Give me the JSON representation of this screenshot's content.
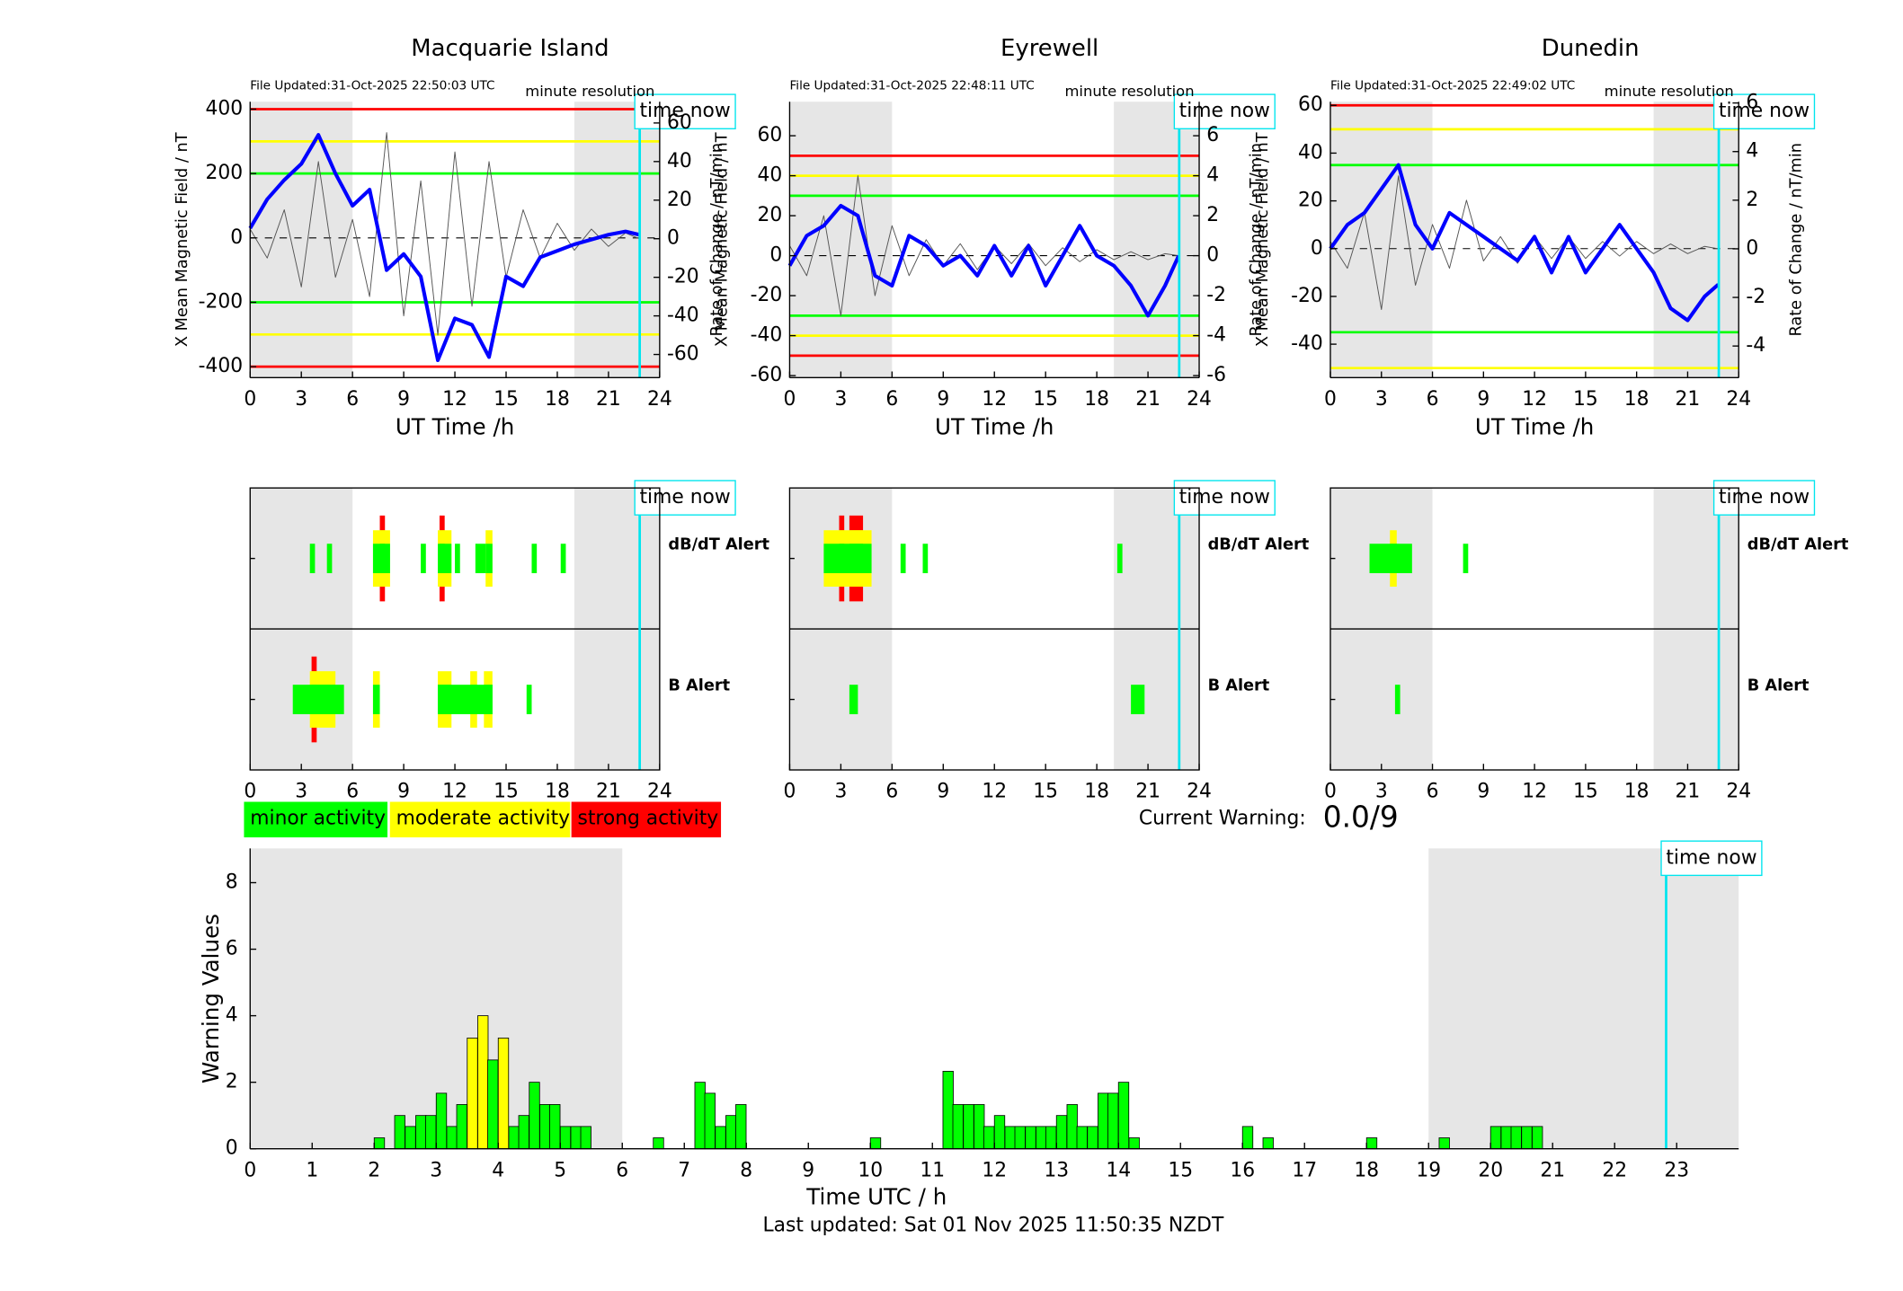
{
  "chart_data": [
    {
      "type": "line",
      "title": "Macquarie Island",
      "file_updated": "File Updated:31-Oct-2025 22:50:03 UTC",
      "resolution_label": "minute resolution",
      "time_now_label": "time now",
      "xlabel": "UT Time /h",
      "ylabel": "X Mean Magnetic Field / nT",
      "y2label": "Rate of Change / nT/min",
      "x": [
        0,
        1,
        2,
        3,
        4,
        5,
        6,
        7,
        8,
        9,
        10,
        11,
        12,
        13,
        14,
        15,
        16,
        17,
        18,
        19,
        20,
        21,
        22,
        22.8
      ],
      "xlim": [
        0,
        24
      ],
      "xticks": [
        0,
        3,
        6,
        9,
        12,
        15,
        18,
        21,
        24
      ],
      "ylim": [
        -434,
        423
      ],
      "yticks": [
        -400,
        -200,
        0,
        200,
        400
      ],
      "y2lim": [
        -72,
        71
      ],
      "y2ticks": [
        -60,
        -40,
        -20,
        0,
        20,
        40,
        60
      ],
      "shaded": [
        [
          0,
          6
        ],
        [
          19,
          24
        ]
      ],
      "time_now": 22.83,
      "thresholds": [
        {
          "value": 400,
          "color": "#ff0000"
        },
        {
          "value": -400,
          "color": "#ff0000"
        },
        {
          "value": 300,
          "color": "#ffff00"
        },
        {
          "value": -300,
          "color": "#ffff00"
        },
        {
          "value": 200,
          "color": "#00ff00"
        },
        {
          "value": -200,
          "color": "#00ff00"
        }
      ],
      "series": [
        {
          "color": "#0000ff",
          "values": [
            30,
            120,
            180,
            230,
            320,
            200,
            100,
            150,
            -100,
            -50,
            -120,
            -380,
            -250,
            -270,
            -370,
            -120,
            -150,
            -60,
            -40,
            -20,
            -5,
            10,
            20,
            10
          ]
        },
        {
          "color": "#555555",
          "axis": "y2",
          "values": [
            5,
            -10,
            15,
            -25,
            40,
            -20,
            10,
            -30,
            55,
            -40,
            30,
            -50,
            45,
            -35,
            40,
            -20,
            15,
            -10,
            8,
            -6,
            5,
            -4,
            3,
            0
          ]
        }
      ]
    },
    {
      "type": "line",
      "title": "Eyrewell",
      "file_updated": "File Updated:31-Oct-2025 22:48:11 UTC",
      "resolution_label": "minute resolution",
      "time_now_label": "time now",
      "xlabel": "UT Time /h",
      "ylabel": "X Mean Magnetic Field / nT",
      "y2label": "Rate of Change / nT/min",
      "x": [
        0,
        1,
        2,
        3,
        4,
        5,
        6,
        7,
        8,
        9,
        10,
        11,
        12,
        13,
        14,
        15,
        16,
        17,
        18,
        19,
        20,
        21,
        22,
        22.8
      ],
      "xlim": [
        0,
        24
      ],
      "xticks": [
        0,
        3,
        6,
        9,
        12,
        15,
        18,
        21,
        24
      ],
      "ylim": [
        -61,
        77
      ],
      "yticks": [
        -60,
        -40,
        -20,
        0,
        20,
        40,
        60
      ],
      "y2lim": [
        -6.1,
        7.7
      ],
      "y2ticks": [
        -6,
        -4,
        -2,
        0,
        2,
        4,
        6
      ],
      "shaded": [
        [
          0,
          6
        ],
        [
          19,
          24
        ]
      ],
      "time_now": 22.83,
      "thresholds": [
        {
          "value": 50,
          "color": "#ff0000"
        },
        {
          "value": -50,
          "color": "#ff0000"
        },
        {
          "value": 40,
          "color": "#ffff00"
        },
        {
          "value": -40,
          "color": "#ffff00"
        },
        {
          "value": 30,
          "color": "#00ff00"
        },
        {
          "value": -30,
          "color": "#00ff00"
        }
      ],
      "series": [
        {
          "color": "#0000ff",
          "values": [
            -5,
            10,
            15,
            25,
            20,
            -10,
            -15,
            10,
            5,
            -5,
            0,
            -10,
            5,
            -10,
            5,
            -15,
            0,
            15,
            0,
            -5,
            -15,
            -30,
            -15,
            0
          ]
        },
        {
          "color": "#555555",
          "axis": "y2",
          "values": [
            0.5,
            -1,
            2,
            -3,
            4,
            -2,
            1.5,
            -1,
            0.8,
            -0.5,
            0.6,
            -0.7,
            0.5,
            -0.4,
            0.6,
            -0.5,
            0.4,
            -0.3,
            0.3,
            -0.2,
            0.2,
            -0.2,
            0.1,
            0
          ]
        }
      ]
    },
    {
      "type": "line",
      "title": "Dunedin",
      "file_updated": "File Updated:31-Oct-2025 22:49:02 UTC",
      "resolution_label": "minute resolution",
      "time_now_label": "time now",
      "xlabel": "UT Time /h",
      "ylabel": "X Mean Magnetic Field / nT",
      "y2label": "Rate of Change / nT/min",
      "x": [
        0,
        1,
        2,
        3,
        4,
        5,
        6,
        7,
        8,
        9,
        10,
        11,
        12,
        13,
        14,
        15,
        16,
        17,
        18,
        19,
        20,
        21,
        22,
        22.8
      ],
      "xlim": [
        0,
        24
      ],
      "xticks": [
        0,
        3,
        6,
        9,
        12,
        15,
        18,
        21,
        24
      ],
      "ylim": [
        -54,
        61.5
      ],
      "yticks": [
        -40,
        -20,
        0,
        20,
        40,
        60
      ],
      "y2lim": [
        -5.3,
        6.05
      ],
      "y2ticks": [
        -4,
        -2,
        0,
        2,
        4,
        6
      ],
      "shaded": [
        [
          0,
          6
        ],
        [
          19,
          24
        ]
      ],
      "time_now": 22.83,
      "thresholds": [
        {
          "value": 60,
          "color": "#ff0000"
        },
        {
          "value": 50,
          "color": "#ffff00"
        },
        {
          "value": -50,
          "color": "#ffff00"
        },
        {
          "value": 35,
          "color": "#00ff00"
        },
        {
          "value": -35,
          "color": "#00ff00"
        }
      ],
      "series": [
        {
          "color": "#0000ff",
          "values": [
            0,
            10,
            15,
            25,
            35,
            10,
            0,
            15,
            10,
            5,
            0,
            -5,
            5,
            -10,
            5,
            -10,
            0,
            10,
            0,
            -10,
            -25,
            -30,
            -20,
            -15
          ]
        },
        {
          "color": "#555555",
          "axis": "y2",
          "values": [
            0.3,
            -0.8,
            1.5,
            -2.5,
            3,
            -1.5,
            1,
            -0.8,
            2,
            -0.5,
            0.5,
            -0.6,
            0.5,
            -0.4,
            0.5,
            -0.4,
            0.3,
            -0.3,
            0.3,
            -0.2,
            0.2,
            -0.2,
            0.1,
            0
          ]
        }
      ]
    },
    {
      "type": "alert",
      "time_now_label": "time now",
      "xlim": [
        0,
        24
      ],
      "xticks": [
        0,
        3,
        6,
        9,
        12,
        15,
        18,
        21,
        24
      ],
      "shaded": [
        [
          0,
          6
        ],
        [
          19,
          24
        ]
      ],
      "time_now": 22.83,
      "level_colors": [
        "#00ff00",
        "#ffff00",
        "#ff0000"
      ],
      "row_labels": [
        "dB/dT Alert",
        "B Alert"
      ],
      "row_colors": [
        "#000000",
        "#0000ff"
      ],
      "rows": [
        [
          [
            3.5,
            3.8,
            1
          ],
          [
            4.5,
            4.8,
            1
          ],
          [
            7.2,
            8.2,
            2
          ],
          [
            7.6,
            7.9,
            3
          ],
          [
            10,
            10.3,
            1
          ],
          [
            11,
            11.8,
            2
          ],
          [
            11.1,
            11.4,
            3
          ],
          [
            12,
            12.3,
            1
          ],
          [
            13.2,
            13.8,
            1
          ],
          [
            13.8,
            14.2,
            2
          ],
          [
            16.5,
            16.8,
            1
          ],
          [
            18.2,
            18.5,
            1
          ]
        ],
        [
          [
            2.5,
            5.5,
            1
          ],
          [
            3.5,
            5,
            2
          ],
          [
            3.6,
            3.9,
            3
          ],
          [
            7.2,
            7.6,
            2
          ],
          [
            11,
            14.2,
            1
          ],
          [
            11,
            11.8,
            2
          ],
          [
            12.9,
            13.3,
            2
          ],
          [
            13.7,
            14.2,
            2
          ],
          [
            16.2,
            16.5,
            1
          ]
        ]
      ]
    },
    {
      "type": "alert",
      "time_now_label": "time now",
      "xlim": [
        0,
        24
      ],
      "xticks": [
        0,
        3,
        6,
        9,
        12,
        15,
        18,
        21,
        24
      ],
      "shaded": [
        [
          0,
          6
        ],
        [
          19,
          24
        ]
      ],
      "time_now": 22.83,
      "level_colors": [
        "#00ff00",
        "#ffff00",
        "#ff0000"
      ],
      "row_labels": [
        "dB/dT Alert",
        "B Alert"
      ],
      "row_colors": [
        "#000000",
        "#0000ff"
      ],
      "rows": [
        [
          [
            2,
            4.8,
            2
          ],
          [
            2.9,
            3.2,
            3
          ],
          [
            3.5,
            4.3,
            3
          ],
          [
            6.5,
            6.8,
            1
          ],
          [
            7.8,
            8.1,
            1
          ],
          [
            19.2,
            19.5,
            1
          ]
        ],
        [
          [
            3.5,
            4,
            1
          ],
          [
            20,
            20.8,
            1
          ]
        ]
      ]
    },
    {
      "type": "alert",
      "time_now_label": "time now",
      "xlim": [
        0,
        24
      ],
      "xticks": [
        0,
        3,
        6,
        9,
        12,
        15,
        18,
        21,
        24
      ],
      "shaded": [
        [
          0,
          6
        ],
        [
          19,
          24
        ]
      ],
      "time_now": 22.83,
      "level_colors": [
        "#00ff00",
        "#ffff00",
        "#ff0000"
      ],
      "row_labels": [
        "dB/dT Alert",
        "B Alert"
      ],
      "row_colors": [
        "#000000",
        "#0000ff"
      ],
      "rows": [
        [
          [
            2.3,
            4.8,
            1
          ],
          [
            3.5,
            3.9,
            2
          ],
          [
            7.8,
            8.1,
            1
          ]
        ],
        [
          [
            3.8,
            4.1,
            1
          ]
        ]
      ]
    },
    {
      "type": "bar",
      "xlabel": "Time UTC / h",
      "ylabel": "Warning Values",
      "time_now_label": "time now",
      "xlim": [
        0,
        24
      ],
      "xticks": [
        0,
        1,
        2,
        3,
        4,
        5,
        6,
        7,
        8,
        9,
        10,
        11,
        12,
        13,
        14,
        15,
        16,
        17,
        18,
        19,
        20,
        21,
        22,
        23
      ],
      "ylim": [
        0,
        9.03
      ],
      "yticks": [
        0,
        2,
        4,
        6,
        8
      ],
      "shaded": [
        [
          0,
          6
        ],
        [
          19,
          24
        ]
      ],
      "time_now": 22.83,
      "bin_width": 0.1667,
      "x": [
        2.0,
        2.33,
        2.5,
        2.67,
        2.83,
        3.0,
        3.17,
        3.33,
        3.5,
        3.67,
        3.83,
        4.0,
        4.17,
        4.33,
        4.5,
        4.67,
        4.83,
        5.0,
        5.17,
        5.33,
        6.5,
        7.17,
        7.33,
        7.5,
        7.67,
        7.83,
        10.0,
        11.17,
        11.33,
        11.5,
        11.67,
        11.83,
        12.0,
        12.17,
        12.33,
        12.5,
        12.67,
        12.83,
        13.0,
        13.17,
        13.33,
        13.5,
        13.67,
        13.83,
        14.0,
        14.17,
        16.0,
        16.33,
        18.0,
        19.17,
        20.0,
        20.17,
        20.33,
        20.5,
        20.67
      ],
      "values": [
        0.33,
        1,
        0.67,
        1,
        1,
        1.67,
        0.67,
        1.33,
        3.33,
        4,
        2.67,
        3.33,
        0.67,
        1,
        2,
        1.33,
        1.33,
        0.67,
        0.67,
        0.67,
        0.33,
        2,
        1.67,
        0.67,
        1,
        1.33,
        0.33,
        2.33,
        1.33,
        1.33,
        1.33,
        0.67,
        1,
        0.67,
        0.67,
        0.67,
        0.67,
        0.67,
        1,
        1.33,
        0.67,
        0.67,
        1.67,
        1.67,
        2,
        0.33,
        0.67,
        0.33,
        0.33,
        0.33,
        0.67,
        0.67,
        0.67,
        0.67,
        0.67
      ],
      "bar_colors": [
        "#0f0",
        "#0f0",
        "#0f0",
        "#0f0",
        "#0f0",
        "#0f0",
        "#0f0",
        "#0f0",
        "#ff0",
        "#ff0",
        "#0f0",
        "#ff0",
        "#0f0",
        "#0f0",
        "#0f0",
        "#0f0",
        "#0f0",
        "#0f0",
        "#0f0",
        "#0f0",
        "#0f0",
        "#0f0",
        "#0f0",
        "#0f0",
        "#0f0",
        "#0f0",
        "#0f0",
        "#0f0",
        "#0f0",
        "#0f0",
        "#0f0",
        "#0f0",
        "#0f0",
        "#0f0",
        "#0f0",
        "#0f0",
        "#0f0",
        "#0f0",
        "#0f0",
        "#0f0",
        "#0f0",
        "#0f0",
        "#0f0",
        "#0f0",
        "#0f0",
        "#0f0",
        "#0f0",
        "#0f0",
        "#0f0",
        "#0f0",
        "#0f0",
        "#0f0",
        "#0f0",
        "#0f0",
        "#0f0"
      ]
    }
  ],
  "legend": [
    {
      "label": "minor activity",
      "color": "#00ff00"
    },
    {
      "label": "moderate activity",
      "color": "#ffff00"
    },
    {
      "label": "strong activity",
      "color": "#ff0000"
    }
  ],
  "current_warning": {
    "label": "Current Warning:",
    "value": "0.0/9"
  },
  "footer": "Last updated: Sat 01 Nov 2025 11:50:35 NZDT"
}
